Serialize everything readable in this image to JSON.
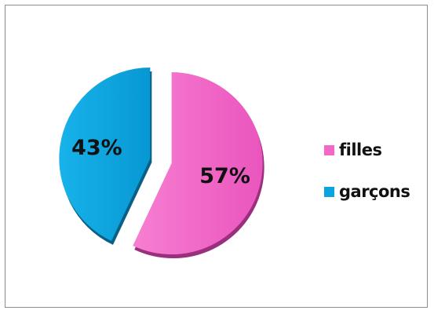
{
  "chart_data": {
    "type": "pie",
    "categories": [
      "filles",
      "garçons"
    ],
    "values": [
      57,
      43
    ],
    "data_labels": [
      "57%",
      "43%"
    ],
    "colors": [
      "#f466c8",
      "#0aa5e0"
    ],
    "legend_position": "right",
    "exploded": true,
    "title": ""
  }
}
